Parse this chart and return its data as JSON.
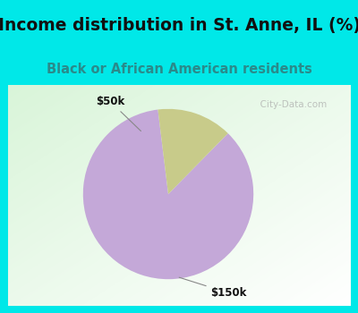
{
  "title": "Income distribution in St. Anne, IL (%)",
  "subtitle": "Black or African American residents",
  "slices": [
    85.7,
    14.3
  ],
  "labels": [
    "$150k",
    "$50k"
  ],
  "colors": [
    "#c4a8d8",
    "#c8cb8a"
  ],
  "title_color": "#111111",
  "subtitle_color": "#2a8a8a",
  "title_fontsize": 13.5,
  "subtitle_fontsize": 10.5,
  "header_bg": "#00e8e8",
  "watermark": "  City-Data.com",
  "startangle": 97,
  "border_color": "#00e8e8",
  "border_width": 8
}
